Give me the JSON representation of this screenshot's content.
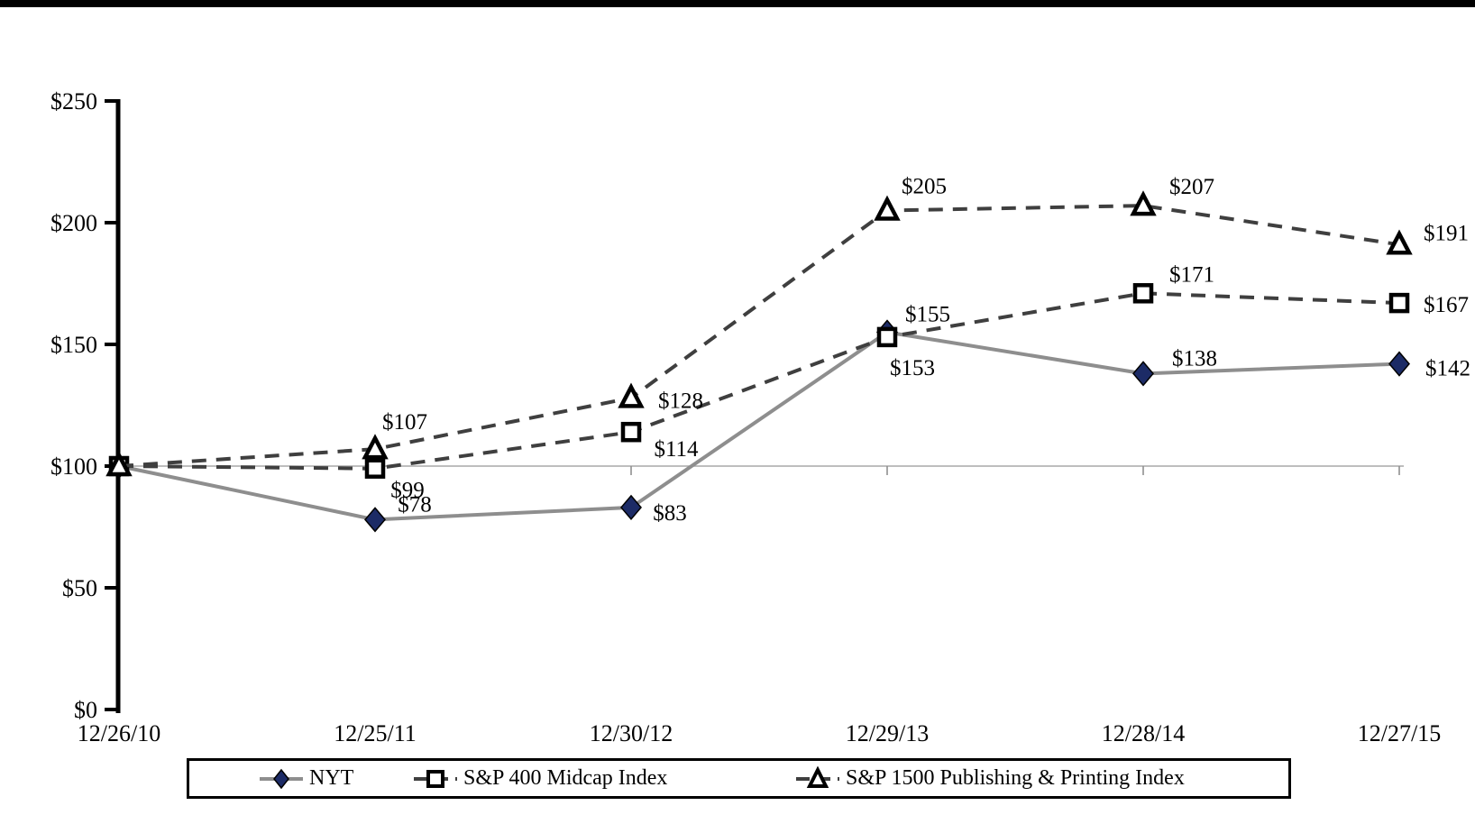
{
  "page": {
    "top_bar_color": "#000000",
    "background_color": "#ffffff"
  },
  "chart_data": {
    "type": "line",
    "title": "",
    "x_labels": [
      "12/26/10",
      "12/25/11",
      "12/30/12",
      "12/29/13",
      "12/28/14",
      "12/27/15"
    ],
    "y_axis": {
      "prefix": "$",
      "tick_values": [
        0,
        50,
        100,
        150,
        200,
        250
      ],
      "tick_labels": [
        "$0",
        "$50",
        "$100",
        "$150",
        "$200",
        "$250"
      ],
      "min": 0,
      "max": 250
    },
    "baseline_value": 100,
    "grid": "single-line-at-100",
    "legend_position": "bottom",
    "series": [
      {
        "name": "NYT",
        "line_style": "solid",
        "line_color": "#8e8e8e",
        "marker": "diamond",
        "marker_fill": "#1c2b66",
        "marker_stroke": "#000000",
        "values": [
          100,
          78,
          83,
          155,
          138,
          142
        ],
        "point_labels": [
          "",
          "$78",
          "$83",
          "$155",
          "$138",
          "$142"
        ],
        "label_offsets": [
          null,
          [
            44,
            -18
          ],
          [
            43,
            5
          ],
          [
            45,
            -21
          ],
          [
            57,
            -18
          ],
          [
            54,
            4
          ]
        ]
      },
      {
        "name": "S&P 400 Midcap Index",
        "line_style": "dashed",
        "line_color": "#3f3f3f",
        "marker": "square",
        "marker_fill": "#ffffff",
        "marker_stroke": "#000000",
        "values": [
          100,
          99,
          114,
          153,
          171,
          167
        ],
        "point_labels": [
          "",
          "$99",
          "$114",
          "$153",
          "$171",
          "$167"
        ],
        "label_offsets": [
          null,
          [
            36,
            23
          ],
          [
            50,
            18
          ],
          [
            28,
            33
          ],
          [
            54,
            -22
          ],
          [
            52,
            1
          ]
        ]
      },
      {
        "name": "S&P 1500 Publishing & Printing Index",
        "line_style": "dashed",
        "line_color": "#3f3f3f",
        "marker": "triangle",
        "marker_fill": "#ffffff",
        "marker_stroke": "#000000",
        "values": [
          100,
          107,
          128,
          205,
          207,
          191
        ],
        "point_labels": [
          "",
          "$107",
          "$128",
          "$205",
          "$207",
          "$191"
        ],
        "label_offsets": [
          null,
          [
            33,
            -31
          ],
          [
            55,
            2
          ],
          [
            41,
            -28
          ],
          [
            54,
            -22
          ],
          [
            52,
            -14
          ]
        ]
      }
    ]
  }
}
